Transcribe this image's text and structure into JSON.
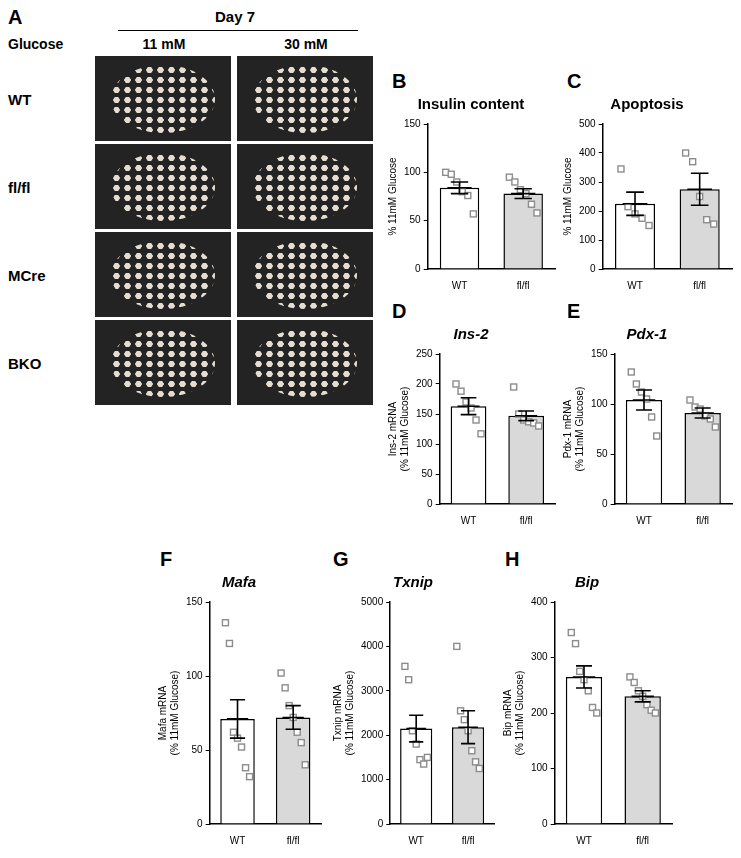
{
  "panel_a": {
    "label": "A",
    "header": "Day 7",
    "row_heading": "Glucose",
    "columns": [
      "11 mM",
      "30 mM"
    ],
    "rows": [
      "WT",
      "fl/fl",
      "MCre",
      "BKO"
    ]
  },
  "chart_data": [
    {
      "panel": "B",
      "type": "bar",
      "title": "Insulin content",
      "y_label": "% 11mM Glucose",
      "categories": [
        "WT",
        "fl/fl"
      ],
      "values": [
        84,
        78
      ],
      "errors": [
        6,
        5
      ],
      "points": [
        [
          100,
          98,
          90,
          80,
          76,
          57
        ],
        [
          95,
          90,
          82,
          78,
          67,
          58
        ]
      ],
      "colors": [
        "#ffffff",
        "#d9d9d9"
      ],
      "marker": "square",
      "grid": false,
      "ylim": [
        0,
        150
      ],
      "yticks": [
        0,
        50,
        100,
        150
      ]
    },
    {
      "panel": "C",
      "type": "bar",
      "title": "Apoptosis",
      "y_label": "% 11mM Glucose",
      "categories": [
        "WT",
        "fl/fl"
      ],
      "values": [
        225,
        275
      ],
      "errors": [
        40,
        55
      ],
      "points": [
        [
          345,
          215,
          190,
          175,
          150
        ],
        [
          400,
          370,
          250,
          170,
          155
        ]
      ],
      "colors": [
        "#ffffff",
        "#d9d9d9"
      ],
      "marker": "square",
      "grid": false,
      "ylim": [
        0,
        500
      ],
      "yticks": [
        0,
        100,
        200,
        300,
        400,
        500
      ]
    },
    {
      "panel": "D",
      "type": "bar",
      "title": "Ins-2",
      "y_label": [
        "Ins-2 mRNA",
        "(% 11mM Glucose)"
      ],
      "categories": [
        "WT",
        "fl/fl"
      ],
      "values": [
        163,
        147
      ],
      "errors": [
        14,
        8
      ],
      "points": [
        [
          200,
          188,
          170,
          160,
          140,
          117
        ],
        [
          195,
          150,
          140,
          137,
          135,
          130
        ]
      ],
      "colors": [
        "#ffffff",
        "#d9d9d9"
      ],
      "marker": "square",
      "grid": false,
      "ylim": [
        0,
        250
      ],
      "yticks": [
        0,
        50,
        100,
        150,
        200,
        250
      ]
    },
    {
      "panel": "E",
      "type": "bar",
      "title": "Pdx-1",
      "y_label": [
        "Pdx-1 mRNA",
        "(% 11mM Glucose)"
      ],
      "categories": [
        "WT",
        "fl/fl"
      ],
      "values": [
        104,
        91
      ],
      "errors": [
        10,
        5
      ],
      "points": [
        [
          132,
          120,
          112,
          105,
          87,
          68
        ],
        [
          104,
          97,
          95,
          88,
          85,
          77
        ]
      ],
      "colors": [
        "#ffffff",
        "#d9d9d9"
      ],
      "marker": "square",
      "grid": false,
      "ylim": [
        0,
        150
      ],
      "yticks": [
        0,
        50,
        100,
        150
      ]
    },
    {
      "panel": "F",
      "type": "bar",
      "title": "Mafa",
      "y_label": [
        "Mafa mRNA",
        "(% 11mM Glucose)"
      ],
      "categories": [
        "WT",
        "fl/fl"
      ],
      "values": [
        71,
        72
      ],
      "errors": [
        13,
        8
      ],
      "points": [
        [
          136,
          122,
          62,
          58,
          52,
          38,
          32
        ],
        [
          102,
          92,
          80,
          72,
          62,
          55,
          40
        ]
      ],
      "colors": [
        "#ffffff",
        "#d9d9d9"
      ],
      "marker": "square",
      "grid": false,
      "ylim": [
        0,
        150
      ],
      "yticks": [
        0,
        50,
        100,
        150
      ]
    },
    {
      "panel": "G",
      "type": "bar",
      "title": "Txnip",
      "y_label": [
        "Txnip mRNA",
        "(% 11mM Glucose)"
      ],
      "categories": [
        "WT",
        "fl/fl"
      ],
      "values": [
        2150,
        2180
      ],
      "errors": [
        300,
        370
      ],
      "points": [
        [
          3550,
          3250,
          2100,
          1800,
          1450,
          1350,
          1500
        ],
        [
          4000,
          2550,
          2350,
          2100,
          1650,
          1400,
          1250
        ]
      ],
      "colors": [
        "#ffffff",
        "#d9d9d9"
      ],
      "marker": "square",
      "grid": false,
      "ylim": [
        0,
        5000
      ],
      "yticks": [
        0,
        1000,
        2000,
        3000,
        4000,
        5000
      ]
    },
    {
      "panel": "H",
      "type": "bar",
      "title": "Bip",
      "y_label": [
        "Bip mRNA",
        "(% 11mM Glucose)"
      ],
      "categories": [
        "WT",
        "fl/fl"
      ],
      "values": [
        265,
        230
      ],
      "errors": [
        20,
        10
      ],
      "points": [
        [
          345,
          325,
          275,
          260,
          240,
          210,
          200
        ],
        [
          265,
          255,
          240,
          230,
          215,
          205,
          200
        ]
      ],
      "colors": [
        "#ffffff",
        "#d9d9d9"
      ],
      "marker": "square",
      "grid": false,
      "ylim": [
        0,
        400
      ],
      "yticks": [
        0,
        100,
        200,
        300,
        400
      ]
    }
  ]
}
